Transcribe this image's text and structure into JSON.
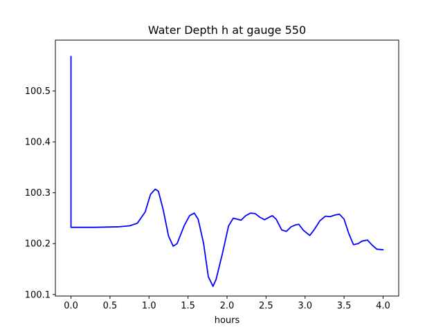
{
  "chart_data": {
    "type": "line",
    "title": "Water Depth h at gauge 550",
    "xlabel": "hours",
    "ylabel": "",
    "xlim": [
      -0.2,
      4.2
    ],
    "ylim": [
      100.097,
      100.6
    ],
    "xticks": [
      0.0,
      0.5,
      1.0,
      1.5,
      2.0,
      2.5,
      3.0,
      3.5,
      4.0
    ],
    "xtick_labels": [
      "0.0",
      "0.5",
      "1.0",
      "1.5",
      "2.0",
      "2.5",
      "3.0",
      "3.5",
      "4.0"
    ],
    "yticks": [
      100.1,
      100.2,
      100.3,
      100.4,
      100.5
    ],
    "ytick_labels": [
      "100.1",
      "100.2",
      "100.3",
      "100.4",
      "100.5"
    ],
    "grid": false,
    "legend": "none",
    "color": "#0000ff",
    "series": [
      {
        "x": [
          0.0,
          0.0,
          0.0,
          0.3,
          0.6,
          0.75,
          0.85,
          0.95,
          1.02,
          1.08,
          1.12,
          1.18,
          1.25,
          1.31,
          1.36,
          1.45,
          1.52,
          1.58,
          1.63,
          1.7,
          1.76,
          1.82,
          1.86,
          1.94,
          2.02,
          2.08,
          2.13,
          2.18,
          2.24,
          2.3,
          2.36,
          2.42,
          2.48,
          2.53,
          2.58,
          2.63,
          2.7,
          2.76,
          2.82,
          2.88,
          2.92,
          2.98,
          3.06,
          3.12,
          3.19,
          3.26,
          3.32,
          3.38,
          3.44,
          3.5,
          3.56,
          3.62,
          3.68,
          3.73,
          3.8,
          3.86,
          3.92,
          4.0
        ],
        "y": [
          100.232,
          100.568,
          100.232,
          100.232,
          100.233,
          100.235,
          100.24,
          100.262,
          100.297,
          100.307,
          100.303,
          100.268,
          100.215,
          100.195,
          100.2,
          100.235,
          100.255,
          100.26,
          100.248,
          100.2,
          100.135,
          100.116,
          100.13,
          100.18,
          100.235,
          100.25,
          100.248,
          100.246,
          100.255,
          100.26,
          100.259,
          100.252,
          100.247,
          100.251,
          100.255,
          100.248,
          100.227,
          100.224,
          100.233,
          100.237,
          100.238,
          100.226,
          100.216,
          100.228,
          100.245,
          100.254,
          100.253,
          100.256,
          100.258,
          100.248,
          100.22,
          100.198,
          100.2,
          100.205,
          100.207,
          100.197,
          100.189,
          100.188
        ]
      }
    ]
  }
}
